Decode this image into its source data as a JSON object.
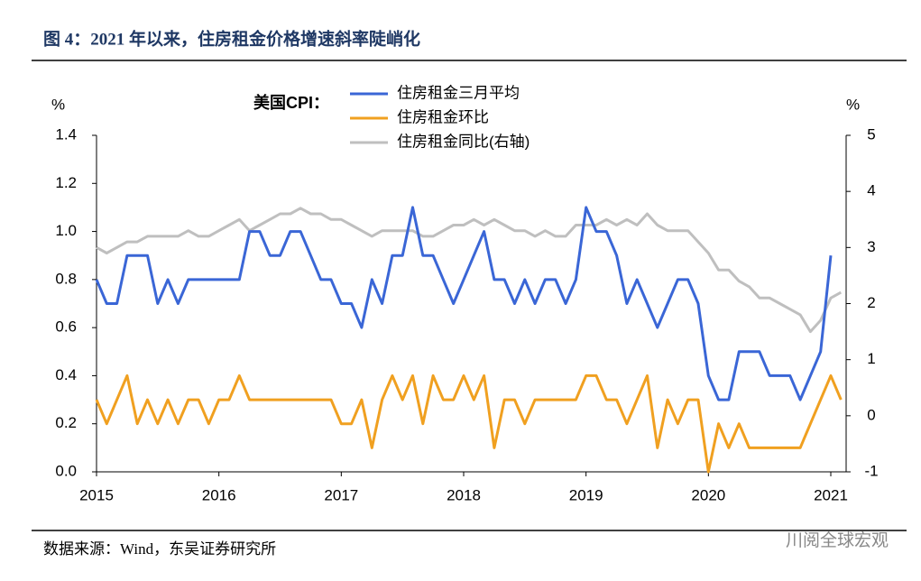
{
  "chart_data": {
    "type": "line",
    "title": "图 4：2021 年以来，住房租金价格增速斜率陡峭化",
    "source": "数据来源：Wind，东吴证券研究所",
    "watermark": "川阅全球宏观",
    "legend_title": "美国CPI：",
    "y_unit": "%",
    "y2_unit": "%",
    "grid": false,
    "categories": [
      "2015",
      null,
      null,
      null,
      null,
      null,
      null,
      null,
      null,
      null,
      null,
      null,
      "2016",
      null,
      null,
      null,
      null,
      null,
      null,
      null,
      null,
      null,
      null,
      null,
      "2017",
      null,
      null,
      null,
      null,
      null,
      null,
      null,
      null,
      null,
      null,
      null,
      "2018",
      null,
      null,
      null,
      null,
      null,
      null,
      null,
      null,
      null,
      null,
      null,
      "2019",
      null,
      null,
      null,
      null,
      null,
      null,
      null,
      null,
      null,
      null,
      null,
      "2020",
      null,
      null,
      null,
      null,
      null,
      null,
      null,
      null,
      null,
      null,
      null,
      "2021",
      null
    ],
    "ylim": [
      0,
      1.4
    ],
    "yticks": [
      {
        "value": 0,
        "label": "0.0"
      },
      0.2,
      0.4,
      0.6,
      0.8,
      {
        "value": 1,
        "label": "1.0"
      },
      1.2,
      1.4
    ],
    "y2lim": [
      -1,
      5
    ],
    "y2ticks": [
      -1,
      0,
      1,
      2,
      3,
      4,
      5
    ],
    "series": [
      {
        "name": "住房租金三月平均",
        "color": "#3a66d6",
        "values": [
          0.8,
          0.7,
          0.7,
          0.9,
          0.9,
          0.9,
          0.7,
          0.8,
          0.7,
          0.8,
          0.8,
          0.8,
          0.8,
          0.8,
          0.8,
          1.0,
          1.0,
          0.9,
          0.9,
          1.0,
          1.0,
          0.9,
          0.8,
          0.8,
          0.7,
          0.7,
          0.6,
          0.8,
          0.7,
          0.9,
          0.9,
          1.1,
          0.9,
          0.9,
          0.8,
          0.7,
          0.8,
          0.9,
          1.0,
          0.8,
          0.8,
          0.7,
          0.8,
          0.7,
          0.8,
          0.8,
          0.7,
          0.8,
          1.1,
          1.0,
          1.0,
          0.9,
          0.7,
          0.8,
          0.7,
          0.6,
          0.7,
          0.8,
          0.8,
          0.7,
          0.4,
          0.3,
          0.3,
          0.5,
          0.5,
          0.5,
          0.4,
          0.4,
          0.4,
          0.3,
          0.4,
          0.5,
          0.9,
          null
        ]
      },
      {
        "name": "住房租金环比",
        "color": "#f0a020",
        "values": [
          0.3,
          0.2,
          0.3,
          0.4,
          0.2,
          0.3,
          0.2,
          0.3,
          0.2,
          0.3,
          0.3,
          0.2,
          0.3,
          0.3,
          0.4,
          0.3,
          0.3,
          0.3,
          0.3,
          0.3,
          0.3,
          0.3,
          0.3,
          0.3,
          0.2,
          0.2,
          0.3,
          0.1,
          0.3,
          0.4,
          0.3,
          0.4,
          0.2,
          0.4,
          0.3,
          0.3,
          0.4,
          0.3,
          0.4,
          0.1,
          0.3,
          0.3,
          0.2,
          0.3,
          0.3,
          0.3,
          0.3,
          0.3,
          0.4,
          0.4,
          0.3,
          0.3,
          0.2,
          0.3,
          0.4,
          0.1,
          0.3,
          0.2,
          0.3,
          0.3,
          0.0,
          0.2,
          0.1,
          0.2,
          0.1,
          0.1,
          0.1,
          0.1,
          0.1,
          0.1,
          0.2,
          0.3,
          0.4,
          0.3
        ]
      },
      {
        "name": "住房租金同比(右轴)",
        "color": "#bfbfbf",
        "axis": "y2",
        "values": [
          3.0,
          2.9,
          3.0,
          3.1,
          3.1,
          3.2,
          3.2,
          3.2,
          3.2,
          3.3,
          3.2,
          3.2,
          3.3,
          3.4,
          3.5,
          3.3,
          3.4,
          3.5,
          3.6,
          3.6,
          3.7,
          3.6,
          3.6,
          3.5,
          3.5,
          3.4,
          3.3,
          3.2,
          3.3,
          3.3,
          3.3,
          3.3,
          3.2,
          3.2,
          3.3,
          3.4,
          3.4,
          3.5,
          3.4,
          3.5,
          3.4,
          3.3,
          3.3,
          3.2,
          3.3,
          3.2,
          3.2,
          3.4,
          3.4,
          3.4,
          3.5,
          3.4,
          3.5,
          3.4,
          3.6,
          3.4,
          3.3,
          3.3,
          3.3,
          3.1,
          2.9,
          2.6,
          2.6,
          2.4,
          2.3,
          2.1,
          2.1,
          2.0,
          1.9,
          1.8,
          1.5,
          1.7,
          2.1,
          2.2
        ]
      }
    ]
  }
}
